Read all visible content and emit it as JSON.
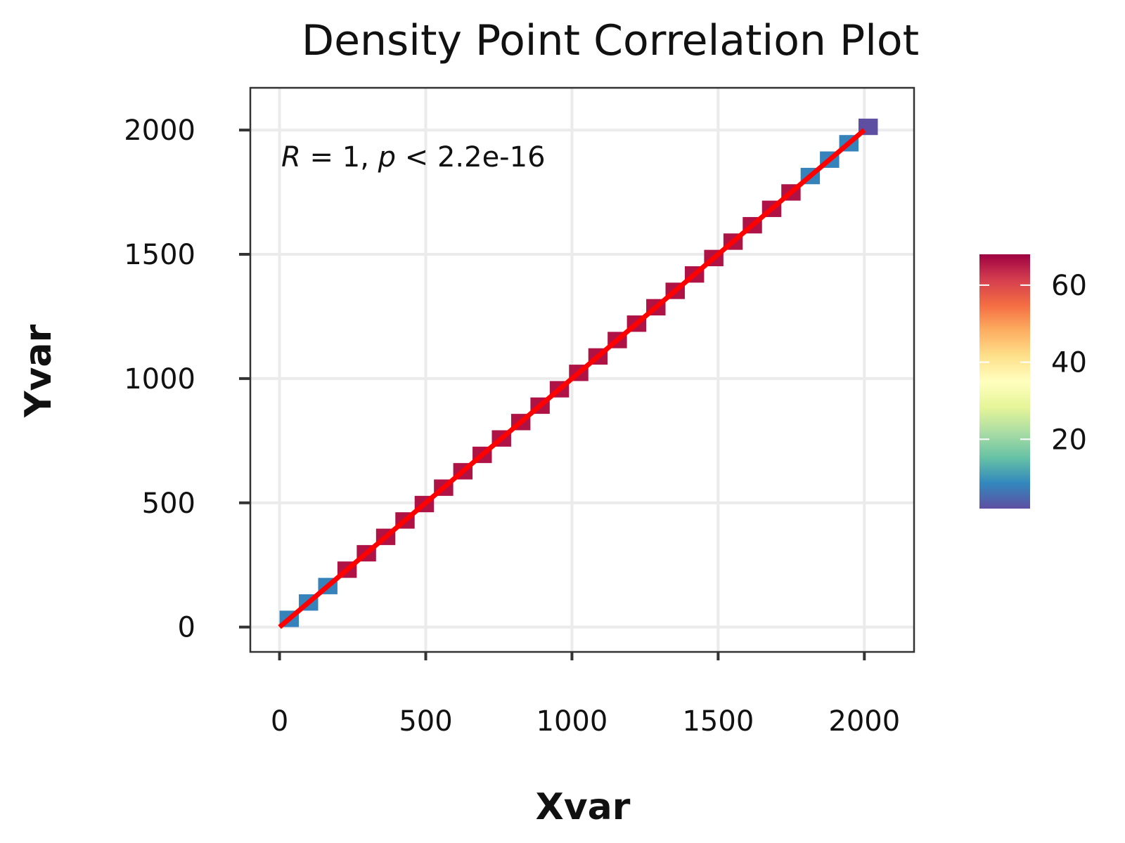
{
  "chart_data": {
    "type": "heatmap",
    "title": "Density Point Correlation Plot",
    "xlabel": "Xvar",
    "ylabel": "Yvar",
    "xlim": [
      -100,
      2170
    ],
    "ylim": [
      -100,
      2170
    ],
    "x_ticks": [
      0,
      500,
      1000,
      1500,
      2000
    ],
    "y_ticks": [
      0,
      500,
      1000,
      1500,
      2000
    ],
    "x_tick_labels": [
      "0",
      "500",
      "1000",
      "1500",
      "2000"
    ],
    "y_tick_labels": [
      "0",
      "500",
      "1000",
      "1500",
      "2000"
    ],
    "grid": true,
    "annotation": {
      "parts": [
        {
          "text": "R",
          "italic": true
        },
        {
          "text": " = 1, ",
          "italic": false
        },
        {
          "text": "p",
          "italic": true
        },
        {
          "text": " < 2.2e-16",
          "italic": false
        }
      ]
    },
    "bin_size": 66,
    "bins": [
      {
        "x": 33,
        "y": 33,
        "count": 8
      },
      {
        "x": 99,
        "y": 99,
        "count": 8
      },
      {
        "x": 165,
        "y": 165,
        "count": 8
      },
      {
        "x": 231,
        "y": 231,
        "count": 66
      },
      {
        "x": 297,
        "y": 297,
        "count": 66
      },
      {
        "x": 363,
        "y": 363,
        "count": 66
      },
      {
        "x": 429,
        "y": 429,
        "count": 66
      },
      {
        "x": 495,
        "y": 495,
        "count": 66
      },
      {
        "x": 561,
        "y": 561,
        "count": 66
      },
      {
        "x": 627,
        "y": 627,
        "count": 66
      },
      {
        "x": 693,
        "y": 693,
        "count": 66
      },
      {
        "x": 759,
        "y": 759,
        "count": 66
      },
      {
        "x": 825,
        "y": 825,
        "count": 66
      },
      {
        "x": 891,
        "y": 891,
        "count": 66
      },
      {
        "x": 957,
        "y": 957,
        "count": 66
      },
      {
        "x": 1023,
        "y": 1023,
        "count": 66
      },
      {
        "x": 1089,
        "y": 1089,
        "count": 66
      },
      {
        "x": 1155,
        "y": 1155,
        "count": 66
      },
      {
        "x": 1221,
        "y": 1221,
        "count": 66
      },
      {
        "x": 1287,
        "y": 1287,
        "count": 66
      },
      {
        "x": 1353,
        "y": 1353,
        "count": 66
      },
      {
        "x": 1419,
        "y": 1419,
        "count": 66
      },
      {
        "x": 1485,
        "y": 1485,
        "count": 66
      },
      {
        "x": 1551,
        "y": 1551,
        "count": 66
      },
      {
        "x": 1617,
        "y": 1617,
        "count": 66
      },
      {
        "x": 1683,
        "y": 1683,
        "count": 66
      },
      {
        "x": 1749,
        "y": 1749,
        "count": 66
      },
      {
        "x": 1815,
        "y": 1815,
        "count": 8
      },
      {
        "x": 1881,
        "y": 1881,
        "count": 8
      },
      {
        "x": 1947,
        "y": 1947,
        "count": 8
      },
      {
        "x": 2013,
        "y": 2013,
        "count": 2
      }
    ],
    "fit_line": {
      "x": [
        0,
        2000
      ],
      "y": [
        0,
        2000
      ],
      "color": "#ff0000"
    },
    "legend": {
      "position": "right",
      "min": 2,
      "max": 68,
      "breaks": [
        20,
        40,
        60
      ],
      "break_labels": [
        "20",
        "40",
        "60"
      ],
      "palette": "Spectral",
      "colors": [
        "#5E4FA2",
        "#3288BD",
        "#66C2A5",
        "#ABDDA4",
        "#E6F598",
        "#FFFFBF",
        "#FEE08B",
        "#FDAE61",
        "#F46D43",
        "#D53E4F",
        "#9E0142"
      ]
    }
  }
}
